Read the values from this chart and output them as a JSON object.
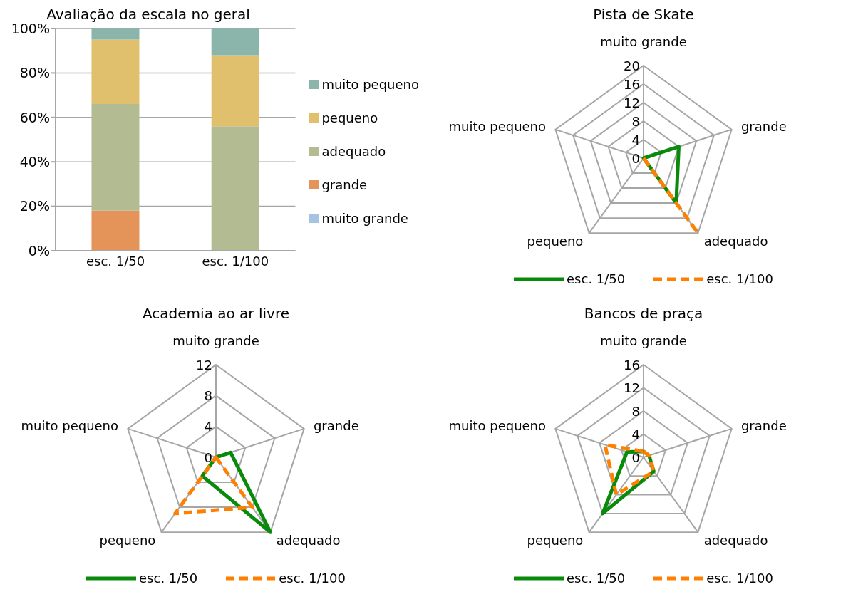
{
  "chart_data": [
    {
      "type": "bar",
      "title": "Avaliação da escala no geral",
      "categories": [
        "esc. 1/50",
        "esc. 1/100"
      ],
      "stacked": true,
      "ylim": [
        0,
        100
      ],
      "yticks": [
        {
          "value": 0,
          "label": "0%"
        },
        {
          "value": 20,
          "label": "20%"
        },
        {
          "value": 40,
          "label": "40%"
        },
        {
          "value": 60,
          "label": "60%"
        },
        {
          "value": 80,
          "label": "80%"
        },
        {
          "value": 100,
          "label": "100%"
        }
      ],
      "grid": "y",
      "legend": "right",
      "series": [
        {
          "name": "muito grande",
          "color": "#a5c4e1",
          "values": [
            0,
            0
          ]
        },
        {
          "name": "grande",
          "color": "#e59459",
          "values": [
            18,
            0
          ]
        },
        {
          "name": "adequado",
          "color": "#b3bb92",
          "values": [
            48,
            56
          ]
        },
        {
          "name": "pequeno",
          "color": "#e0bf6d",
          "values": [
            29,
            32
          ]
        },
        {
          "name": "muito pequeno",
          "color": "#8bb5aa",
          "values": [
            5,
            12
          ]
        }
      ]
    },
    {
      "type": "radar",
      "title": "Pista de Skate",
      "categories": [
        "muito grande",
        "grande",
        "adequado",
        "pequeno",
        "muito pequeno"
      ],
      "ylim": [
        0,
        20
      ],
      "yticks": [
        0,
        4,
        8,
        12,
        16,
        20
      ],
      "grid": true,
      "legend": "bottom",
      "series": [
        {
          "name": "esc. 1/50",
          "color": "#0a8a0a",
          "line_style": "solid",
          "values": [
            0,
            8,
            12,
            0,
            0
          ]
        },
        {
          "name": "esc. 1/100",
          "color": "#ff8000",
          "line_style": "dashed",
          "values": [
            0,
            0,
            20,
            0,
            0
          ]
        }
      ]
    },
    {
      "type": "radar",
      "title": "Academia ao ar livre",
      "categories": [
        "muito grande",
        "grande",
        "adequado",
        "pequeno",
        "muito pequeno"
      ],
      "ylim": [
        0,
        12
      ],
      "yticks": [
        0,
        4,
        8,
        12
      ],
      "grid": true,
      "legend": "bottom",
      "series": [
        {
          "name": "esc. 1/50",
          "color": "#0a8a0a",
          "line_style": "solid",
          "values": [
            0,
            2,
            12,
            3,
            0
          ]
        },
        {
          "name": "esc. 1/100",
          "color": "#ff8000",
          "line_style": "dashed",
          "values": [
            0,
            0,
            8,
            9,
            0
          ]
        }
      ]
    },
    {
      "type": "radar",
      "title": "Bancos de praça",
      "categories": [
        "muito grande",
        "grande",
        "adequado",
        "pequeno",
        "muito pequeno"
      ],
      "ylim": [
        0,
        16
      ],
      "yticks": [
        0,
        4,
        8,
        12,
        16
      ],
      "grid": true,
      "legend": "bottom",
      "series": [
        {
          "name": "esc. 1/50",
          "color": "#0a8a0a",
          "line_style": "solid",
          "values": [
            1,
            1,
            3,
            12,
            3
          ]
        },
        {
          "name": "esc. 1/100",
          "color": "#ff8000",
          "line_style": "dashed",
          "values": [
            1,
            1,
            3,
            8,
            7
          ]
        }
      ]
    }
  ]
}
